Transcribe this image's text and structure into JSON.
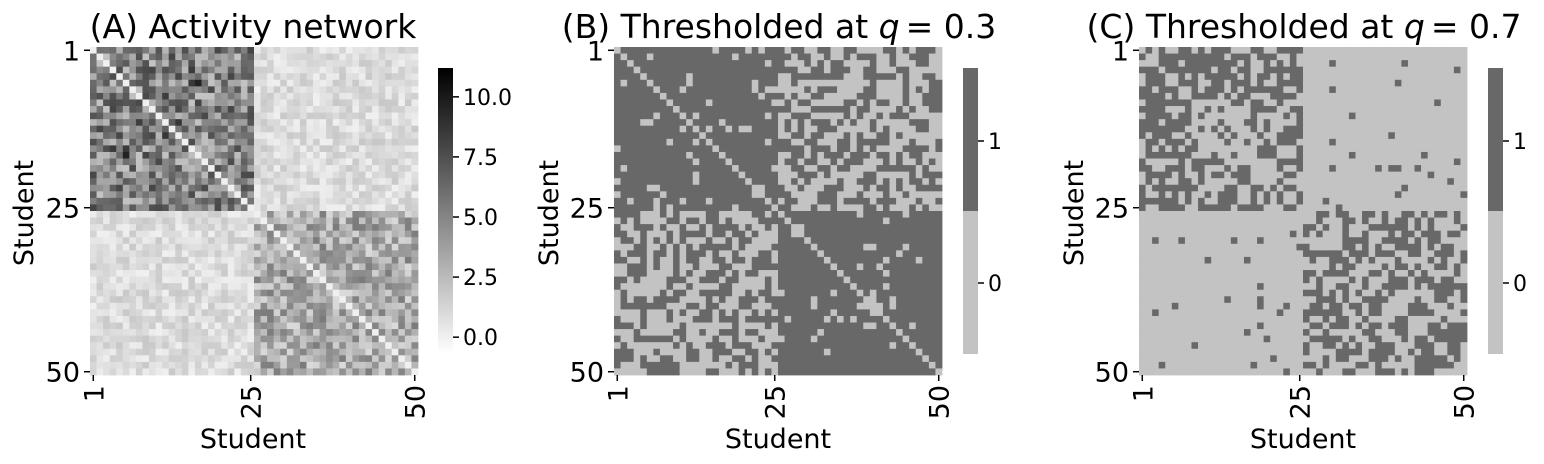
{
  "chart_data": [
    {
      "type": "heatmap",
      "title": "(A) Activity network",
      "xlabel": "Student",
      "ylabel": "Student",
      "x_ticks": [
        "1",
        "25",
        "50"
      ],
      "y_ticks": [
        "1",
        "25",
        "50"
      ],
      "n": 50,
      "colormap": "white-to-black",
      "block_structure": {
        "groups": [
          [
            1,
            25
          ],
          [
            26,
            50
          ]
        ],
        "within_level": "high (about 3-11)",
        "between_level": "low (about 0-2)"
      },
      "colorbar": {
        "range": [
          -0.7,
          11.2
        ],
        "ticks": [
          "0.0",
          "2.5",
          "5.0",
          "7.5",
          "10.0"
        ],
        "tick_values": [
          0,
          2.5,
          5,
          7.5,
          10
        ]
      }
    },
    {
      "type": "heatmap",
      "title_prefix": "(B) Thresholded at ",
      "q_label": "q",
      "q_value": "= 0.3",
      "xlabel": "Student",
      "ylabel": "Student",
      "x_ticks": [
        "1",
        "25",
        "50"
      ],
      "y_ticks": [
        "1",
        "25",
        "50"
      ],
      "n": 50,
      "threshold_q": 0.3,
      "colors": {
        "0": "#c3c3c3",
        "1": "#686868"
      },
      "block_structure": {
        "groups": [
          [
            1,
            25
          ],
          [
            26,
            50
          ]
        ],
        "within_density": "nearly all 1 (off-diagonal)",
        "between_density": "about half 1"
      },
      "colorbar": {
        "ticks": [
          "0",
          "1"
        ]
      }
    },
    {
      "type": "heatmap",
      "title_prefix": "(C) Thresholded at ",
      "q_label": "q",
      "q_value": "= 0.7",
      "xlabel": "Student",
      "ylabel": "Student",
      "x_ticks": [
        "1",
        "25",
        "50"
      ],
      "y_ticks": [
        "1",
        "25",
        "50"
      ],
      "n": 50,
      "threshold_q": 0.7,
      "colors": {
        "0": "#c3c3c3",
        "1": "#686868"
      },
      "block_structure": {
        "groups": [
          [
            1,
            25
          ],
          [
            26,
            50
          ]
        ],
        "within_density": "about half 1",
        "between_density": "mostly 0"
      },
      "colorbar": {
        "ticks": [
          "0",
          "1"
        ]
      }
    }
  ]
}
